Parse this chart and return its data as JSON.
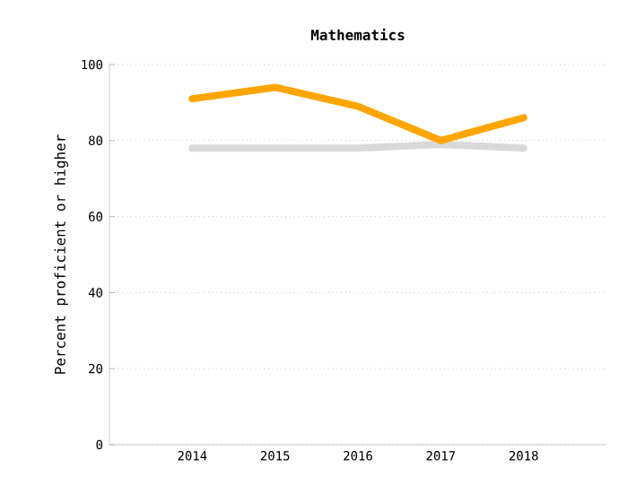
{
  "chart_data": {
    "type": "line",
    "title": "Mathematics",
    "ylabel": "Percent proficient or higher",
    "categories": [
      "2014",
      "2015",
      "2016",
      "2017",
      "2018"
    ],
    "series": [
      {
        "color": "#d9d9d9",
        "values": [
          78,
          78,
          78,
          79,
          78
        ]
      },
      {
        "color": "#ffa500",
        "values": [
          91,
          94,
          89,
          80,
          86
        ]
      }
    ],
    "ylim": [
      0,
      100
    ],
    "yticks": [
      0,
      20,
      40,
      60,
      80,
      100
    ],
    "grid": "y",
    "marker": "none",
    "line_style": "solid"
  }
}
